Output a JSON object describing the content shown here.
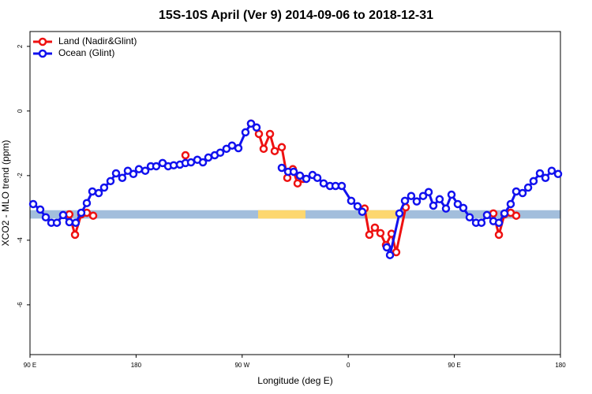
{
  "chart_data": {
    "type": "line",
    "title": "15S-10S April (Ver 9)   2014-09-06 to 2018-12-31",
    "x_label": "Longitude (deg E)",
    "y_label": "XCO2 - MLO trend (ppm)",
    "xlim": [
      90,
      540
    ],
    "xticks": [
      {
        "value": 90,
        "label": "90 E"
      },
      180,
      {
        "value": 270,
        "label": "90 W"
      },
      {
        "value": 360,
        "label": "0"
      },
      {
        "value": 450,
        "label": "90 E"
      },
      {
        "value": 540,
        "label": "180"
      }
    ],
    "ylim": [
      -7.54,
      2.46
    ],
    "yticks": [
      2,
      0,
      -2,
      -4,
      -6
    ],
    "legend": "top-left",
    "band": {
      "y": [
        -3.33,
        -3.07
      ],
      "color": "#a2bedc",
      "highlight_x": [
        [
          283.5,
          323.7
        ],
        [
          376,
          401.4
        ]
      ],
      "highlight_color": "#fdd76f"
    },
    "series": [
      {
        "name": "Land (Nadir&Glint)",
        "color": "#ee1111",
        "x": [
          123.4,
          128.2,
          133.5,
          138.2,
          143.6,
          null,
          221.9,
          null,
          277.5,
          284.2,
          288.2,
          293.6,
          297.6,
          303.6,
          308.3,
          313.0,
          317.0,
          321.7,
          null,
          373.9,
          377.9,
          382.6,
          387.3,
          392.0,
          396.7,
          400.7,
          408.8,
          null,
          483.1,
          487.8,
          492.5,
          497.8,
          502.5
        ],
        "values": [
          -3.2,
          -3.83,
          -3.2,
          -3.15,
          -3.24,
          null,
          -1.37,
          null,
          -0.39,
          -0.71,
          -1.17,
          -0.71,
          -1.24,
          -1.12,
          -2.07,
          -1.8,
          -2.24,
          -2.1,
          null,
          -3.02,
          -3.83,
          -3.61,
          -3.78,
          -4.15,
          -3.8,
          -4.37,
          -2.98,
          null,
          -3.17,
          -3.83,
          -3.2,
          -3.15,
          -3.24
        ]
      },
      {
        "name": "Ocean (Glint)",
        "color": "#1111ee",
        "x": [
          92.7,
          98.7,
          103.4,
          108.1,
          112.8,
          118.1,
          123.4,
          128.8,
          133.5,
          138.2,
          142.9,
          148.3,
          152.9,
          158.3,
          163.0,
          168.3,
          173.0,
          177.7,
          182.4,
          187.8,
          192.5,
          197.1,
          202.5,
          207.2,
          211.9,
          217.2,
          221.9,
          226.6,
          232.0,
          236.7,
          241.3,
          246.7,
          251.4,
          256.7,
          261.4,
          266.8,
          272.8,
          277.5,
          282.2,
          null,
          303.6,
          309.0,
          313.7,
          319.0,
          324.4,
          329.7,
          333.8,
          339.1,
          344.5,
          349.2,
          354.5,
          362.5,
          367.9,
          371.9,
          null,
          392.7,
          395.4,
          403.4,
          408.1,
          413.4,
          418.1,
          423.5,
          428.2,
          432.2,
          437.5,
          442.9,
          447.6,
          452.9,
          457.6,
          463.0,
          468.4,
          473.0,
          477.7,
          483.1,
          487.8,
          492.5,
          497.8,
          502.5,
          507.9,
          512.6,
          517.2,
          522.6,
          527.3,
          532.6,
          538.0
        ],
        "values": [
          -2.88,
          -3.05,
          -3.29,
          -3.46,
          -3.46,
          -3.22,
          -3.44,
          -3.46,
          -3.15,
          -2.85,
          -2.49,
          -2.54,
          -2.37,
          -2.17,
          -1.93,
          -2.07,
          -1.85,
          -1.95,
          -1.8,
          -1.85,
          -1.71,
          -1.71,
          -1.61,
          -1.71,
          -1.68,
          -1.66,
          -1.61,
          -1.59,
          -1.51,
          -1.59,
          -1.44,
          -1.37,
          -1.29,
          -1.17,
          -1.07,
          -1.15,
          -0.66,
          -0.39,
          -0.51,
          null,
          -1.76,
          -1.88,
          -1.88,
          -2.0,
          -2.1,
          -1.98,
          -2.07,
          -2.24,
          -2.32,
          -2.32,
          -2.32,
          -2.78,
          -2.95,
          -3.12,
          null,
          -4.22,
          -4.46,
          -3.17,
          -2.78,
          -2.63,
          -2.8,
          -2.63,
          -2.51,
          -2.93,
          -2.73,
          -3.02,
          -2.59,
          -2.88,
          -3.0,
          -3.29,
          -3.46,
          -3.46,
          -3.22,
          -3.41,
          -3.46,
          -3.17,
          -2.88,
          -2.49,
          -2.54,
          -2.37,
          -2.17,
          -1.93,
          -2.07,
          -1.85,
          -1.95
        ]
      }
    ]
  }
}
